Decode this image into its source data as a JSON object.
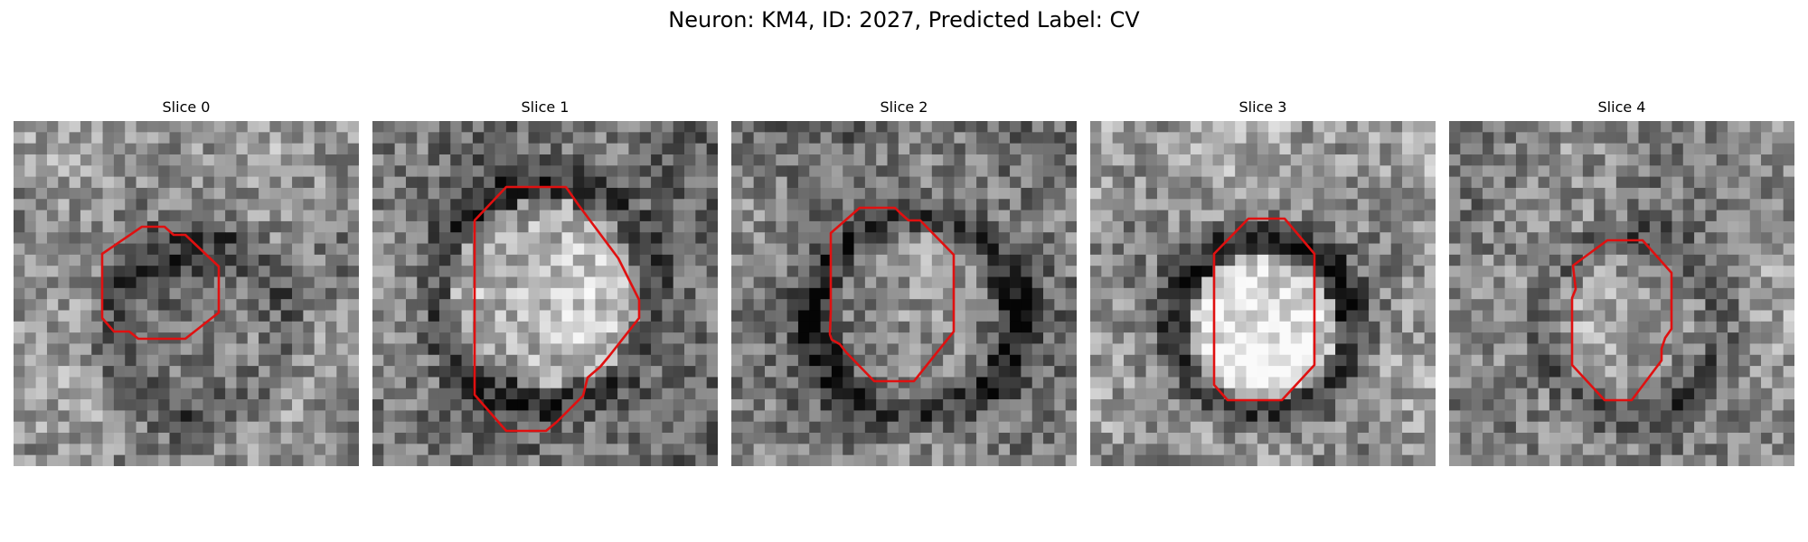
{
  "figure": {
    "title": "Neuron: KM4, ID: 2027, Predicted Label: CV",
    "contour_color": "#e01010",
    "colormap": "gray",
    "panels": [
      {
        "title": "Slice 0"
      },
      {
        "title": "Slice 1"
      },
      {
        "title": "Slice 2"
      },
      {
        "title": "Slice 3"
      },
      {
        "title": "Slice 4"
      }
    ]
  }
}
